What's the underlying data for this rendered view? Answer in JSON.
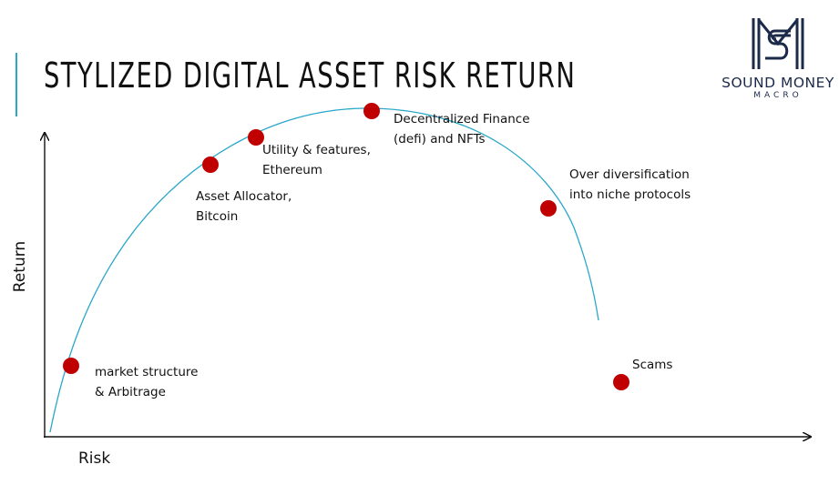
{
  "slide": {
    "title": "STYLIZED DIGITAL ASSET RISK RETURN"
  },
  "logo": {
    "name": "SOUND MONEY",
    "sub": "MACRO",
    "icon": "sm-monogram-icon",
    "color": "#1c2a4a"
  },
  "axes": {
    "x_label": "Risk",
    "y_label": "Return"
  },
  "colors": {
    "curve": "#2aa7c9",
    "point": "#c00000",
    "axis": "#111111"
  },
  "points": [
    {
      "id": "market-structure",
      "lines": [
        "market structure",
        "& Arbitrage"
      ]
    },
    {
      "id": "asset-allocator",
      "lines": [
        "Asset Allocator,",
        "Bitcoin"
      ]
    },
    {
      "id": "utility-features",
      "lines": [
        "Utility & features,",
        "Ethereum"
      ]
    },
    {
      "id": "defi-nfts",
      "lines": [
        "Decentralized Finance",
        "(defi) and NFTs"
      ]
    },
    {
      "id": "over-diversification",
      "lines": [
        "Over diversification",
        "into niche protocols"
      ]
    },
    {
      "id": "scams",
      "lines": [
        "Scams"
      ]
    }
  ]
}
